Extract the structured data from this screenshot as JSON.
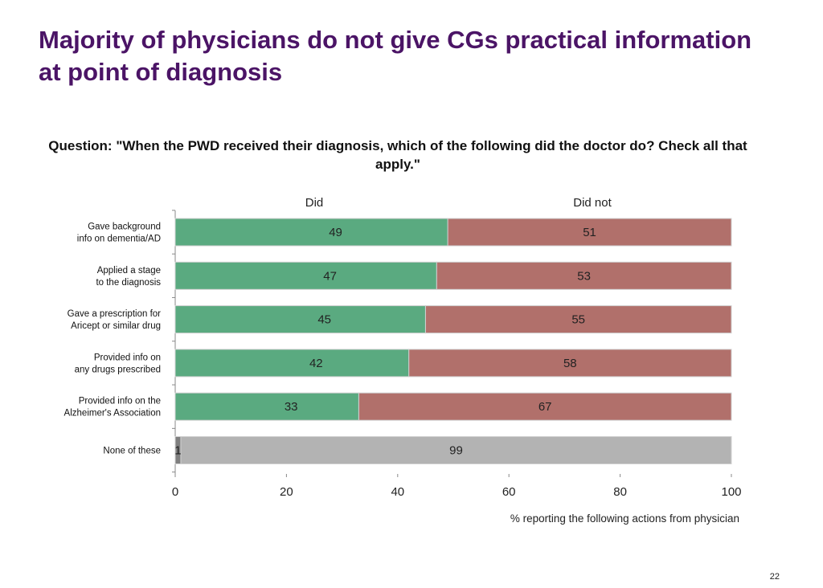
{
  "slide": {
    "title": "Majority of physicians do not give CGs practical information at point of diagnosis",
    "page_number": "22"
  },
  "chart_data": {
    "type": "bar",
    "orientation": "horizontal",
    "stacked": true,
    "title": "Question: \"When the PWD received their diagnosis, which of the following did the doctor do? Check all that apply.\"",
    "xlabel": "% reporting the following actions from physician",
    "ylabel": "",
    "xlim": [
      0,
      100
    ],
    "x_ticks": [
      0,
      20,
      40,
      60,
      80,
      100
    ],
    "grid": false,
    "legend": "none",
    "categories": [
      "Gave background info on dementia/AD",
      "Applied a stage to the diagnosis",
      "Gave a prescription for Aricept or similar drug",
      "Provided info on any drugs prescribed",
      "Provided info on the Alzheimer's Association",
      "None of these"
    ],
    "category_label_lines": [
      [
        "Gave background",
        "info on dementia/AD"
      ],
      [
        "Applied a stage",
        "to the diagnosis"
      ],
      [
        "Gave a prescription for",
        "Aricept or similar drug"
      ],
      [
        "Provided info on",
        "any drugs prescribed"
      ],
      [
        "Provided info on the",
        "Alzheimer's Association"
      ],
      [
        "None of these"
      ]
    ],
    "series": [
      {
        "name": "Did",
        "values": [
          49,
          47,
          45,
          42,
          33,
          1
        ]
      },
      {
        "name": "Did not",
        "values": [
          51,
          53,
          55,
          58,
          67,
          99
        ]
      }
    ],
    "colors": {
      "did": "#5aaa80",
      "did_not": "#b1706b",
      "none_did": "#7f7f7f",
      "none_did_not": "#b3b3b3",
      "bar_edge": "#d0d0d0",
      "axis": "#888888"
    }
  }
}
